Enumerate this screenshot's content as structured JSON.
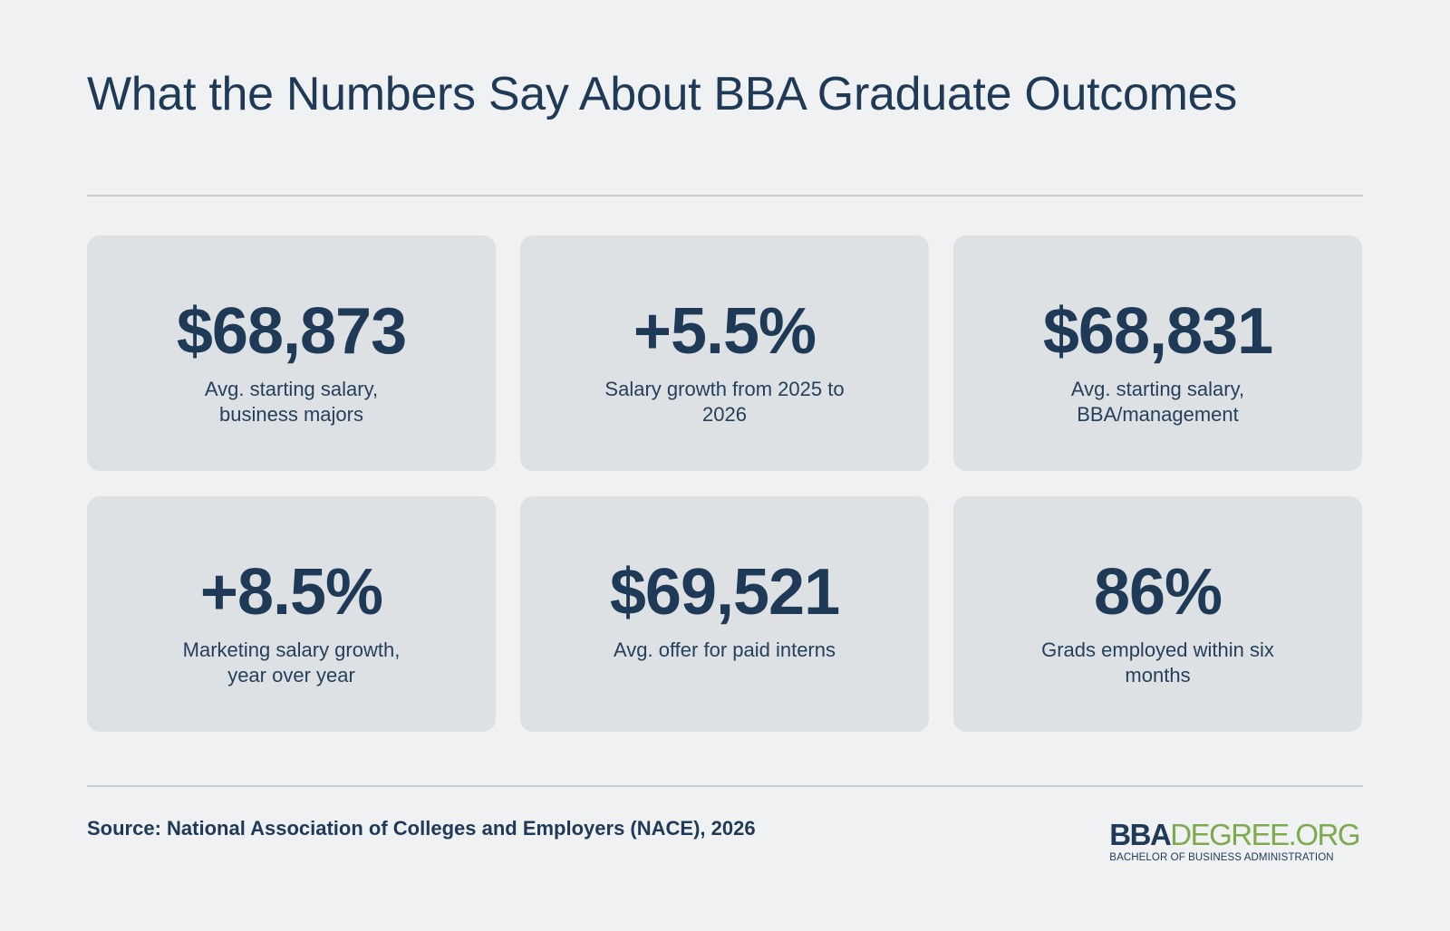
{
  "title": "What the Numbers Say About BBA Graduate Outcomes",
  "stats": [
    {
      "value": "$68,873",
      "label": "Avg. starting salary, business majors"
    },
    {
      "value": "+5.5%",
      "label": "Salary growth from 2025 to 2026"
    },
    {
      "value": "$68,831",
      "label": "Avg. starting salary, BBA/management"
    },
    {
      "value": "+8.5%",
      "label": "Marketing salary growth, year over year"
    },
    {
      "value": "$69,521",
      "label": "Avg. offer for paid interns"
    },
    {
      "value": "86%",
      "label": "Grads employed within six months"
    }
  ],
  "source": "Source: National Association of Colleges and Employers (NACE), 2026",
  "logo": {
    "bba": "BBA",
    "degree": "DEGREE.ORG",
    "tagline": "BACHELOR OF BUSINESS ADMINISTRATION"
  },
  "colors": {
    "background": "#eff1f3",
    "card": "#dde1e4",
    "text": "#1f3a56",
    "logo_accent": "#7eaa4f"
  }
}
